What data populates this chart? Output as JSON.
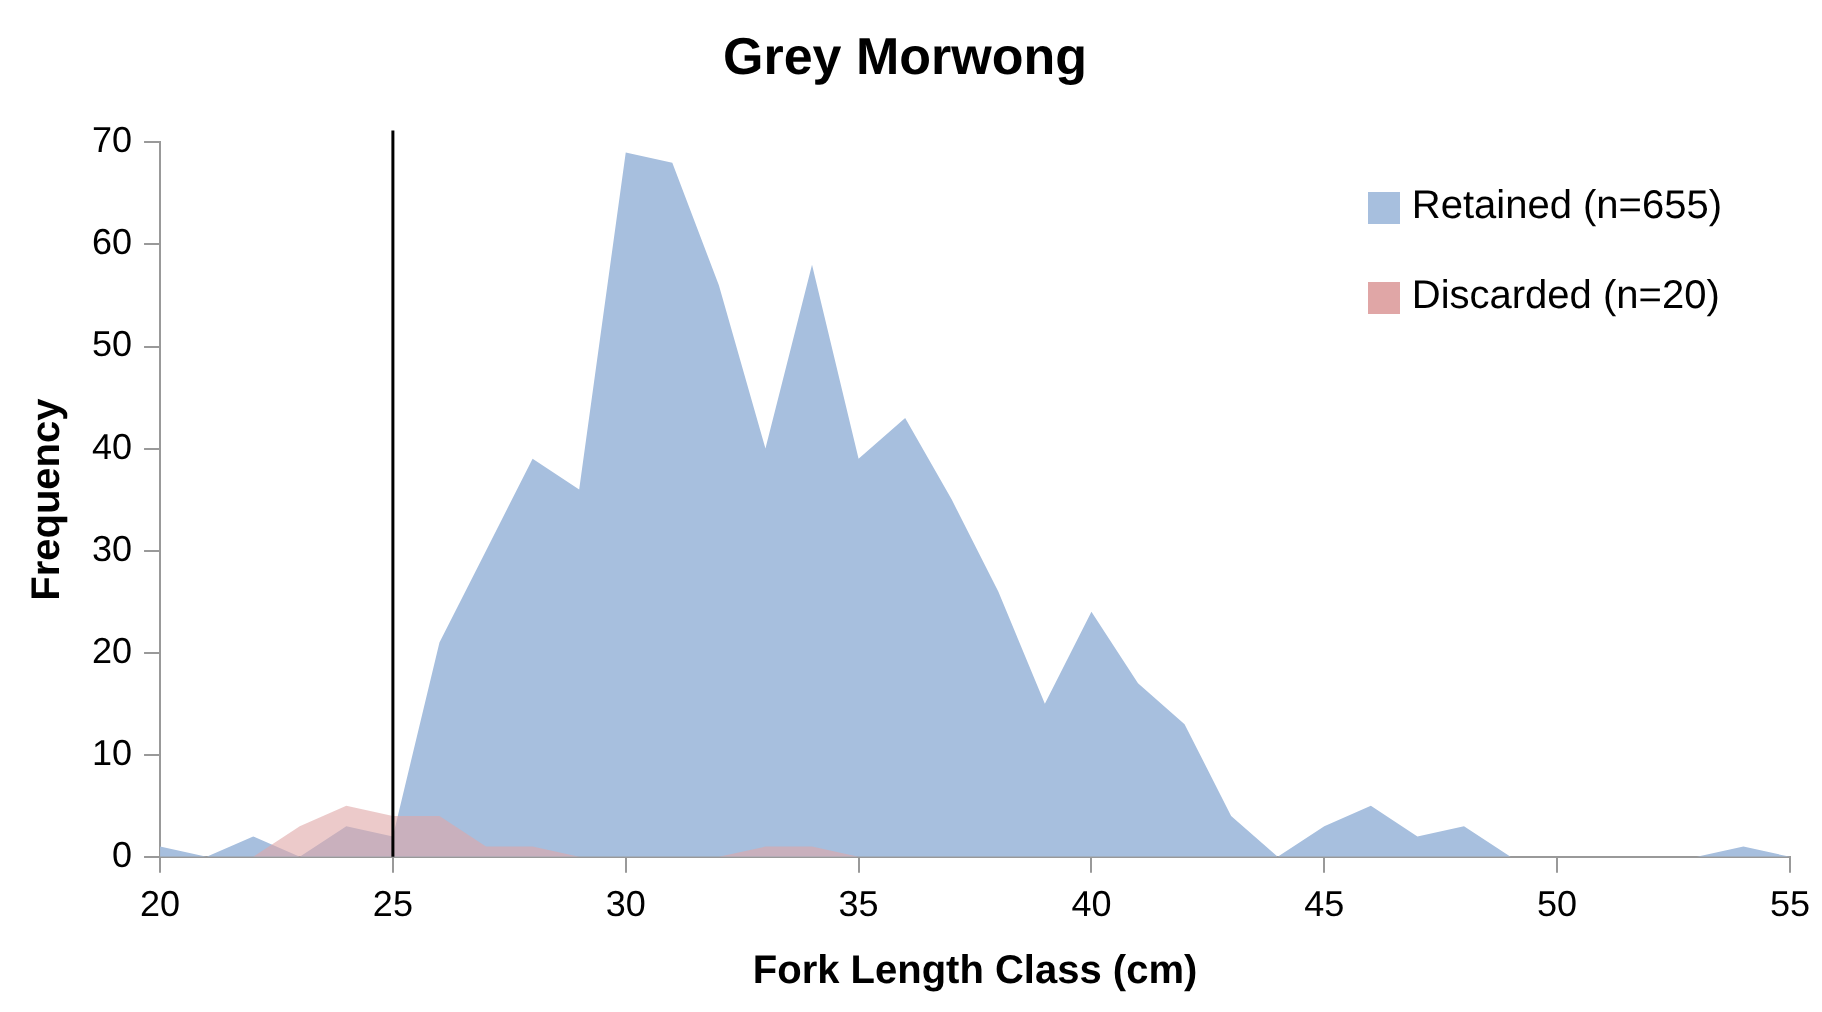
{
  "chart_data": {
    "type": "area",
    "title": "Grey Morwong",
    "xlabel": "Fork Length Class (cm)",
    "ylabel": "Frequency",
    "x": [
      20,
      21,
      22,
      23,
      24,
      25,
      26,
      27,
      28,
      29,
      30,
      31,
      32,
      33,
      34,
      35,
      36,
      37,
      38,
      39,
      40,
      41,
      42,
      43,
      44,
      45,
      46,
      47,
      48,
      49,
      50,
      51,
      52,
      53,
      54,
      55
    ],
    "series": [
      {
        "name": "Retained (n=655)",
        "color": "#a7bfde",
        "values": [
          1,
          0,
          2,
          0,
          3,
          2,
          21,
          30,
          39,
          36,
          69,
          68,
          56,
          40,
          58,
          39,
          43,
          35,
          26,
          15,
          24,
          17,
          13,
          4,
          0,
          3,
          5,
          2,
          3,
          0,
          0,
          0,
          0,
          0,
          1,
          0
        ]
      },
      {
        "name": "Discarded (n=20)",
        "color": "#e0a6a6",
        "values": [
          0,
          0,
          0,
          3,
          5,
          4,
          4,
          1,
          1,
          0,
          0,
          0,
          0,
          1,
          1,
          0,
          0,
          0,
          0,
          0,
          0,
          0,
          0,
          0,
          0,
          0,
          0,
          0,
          0,
          0,
          0,
          0,
          0,
          0,
          0,
          0
        ]
      }
    ],
    "xlim": [
      20,
      55
    ],
    "xticks": [
      20,
      25,
      30,
      35,
      40,
      45,
      50,
      55
    ],
    "ylim": [
      0,
      70
    ],
    "yticks": [
      0,
      10,
      20,
      30,
      40,
      50,
      60,
      70
    ],
    "ref_lines": [
      {
        "axis": "x",
        "value": 25,
        "color": "#000000"
      }
    ],
    "grid": false,
    "legend": "top right",
    "marker": "none"
  }
}
